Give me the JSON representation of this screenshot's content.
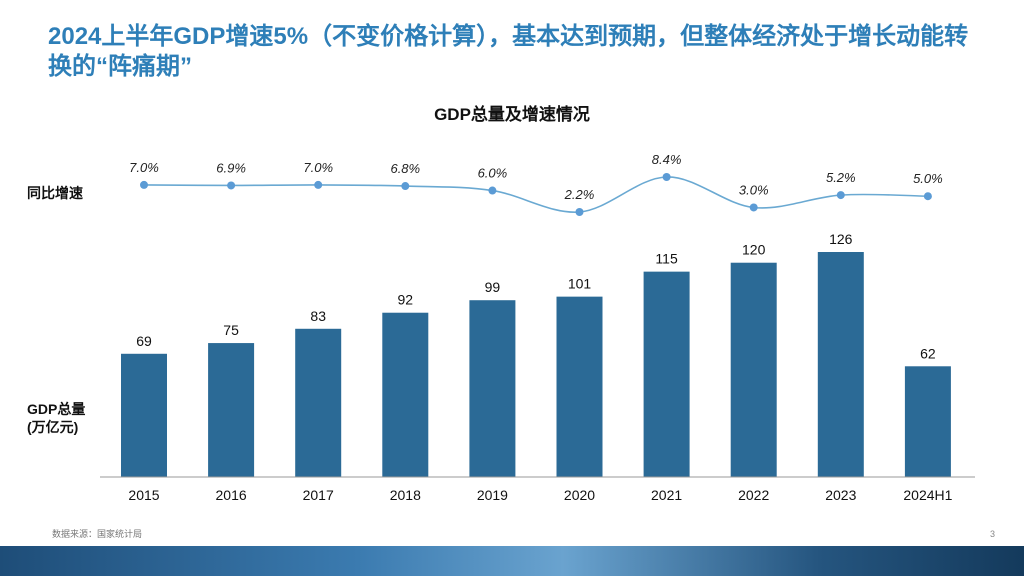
{
  "title": "2024上半年GDP增速5%（不变价格计算），基本达到预期，但整体经济处于增长动能转换的“阵痛期”",
  "axis_labels": {
    "rate": "同比增速",
    "gdp_line1": "GDP总量",
    "gdp_line2": "(万亿元)"
  },
  "source": "数据来源：国家统计局",
  "page_number": "3",
  "colors": {
    "title": "#2e7fb8",
    "bar": "#2b6a96",
    "line": "#6aa9d2",
    "marker": "#5b9bd5"
  },
  "chart_data": {
    "type": "bar",
    "title": "GDP总量及增速情况",
    "categories": [
      "2015",
      "2016",
      "2017",
      "2018",
      "2019",
      "2020",
      "2021",
      "2022",
      "2023",
      "2024H1"
    ],
    "series": [
      {
        "name": "GDP总量(万亿元)",
        "type": "bar",
        "values": [
          69,
          75,
          83,
          92,
          99,
          101,
          115,
          120,
          126,
          62
        ]
      },
      {
        "name": "同比增速",
        "type": "line",
        "values": [
          7.0,
          6.9,
          7.0,
          6.8,
          6.0,
          2.2,
          8.4,
          3.0,
          5.2,
          5.0
        ],
        "labels": [
          "7.0%",
          "6.9%",
          "7.0%",
          "6.8%",
          "6.0%",
          "2.2%",
          "8.4%",
          "3.0%",
          "5.2%",
          "5.0%"
        ]
      }
    ],
    "ylim_bar": [
      0,
      140
    ],
    "ylim_line": [
      0,
      10
    ],
    "grid": false
  }
}
